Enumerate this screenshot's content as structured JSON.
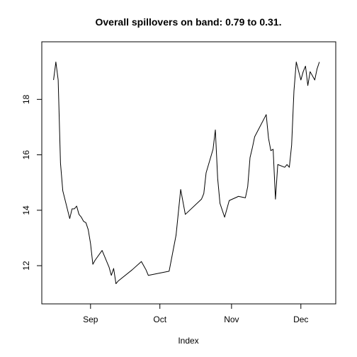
{
  "chart_data": {
    "type": "line",
    "title": "Overall spillovers on band: 0.79 to 0.31.",
    "xlabel": "Index",
    "ylabel": "",
    "x_axis": {
      "kind": "date",
      "range": [
        "2019-08-16",
        "2019-12-11"
      ],
      "ticks": [
        {
          "value": "2019-09-01",
          "label": "Sep"
        },
        {
          "value": "2019-10-01",
          "label": "Oct"
        },
        {
          "value": "2019-11-01",
          "label": "Nov"
        },
        {
          "value": "2019-12-01",
          "label": "Dec"
        }
      ]
    },
    "y_axis": {
      "range": [
        11.0,
        19.7
      ],
      "ticks": [
        {
          "value": 12,
          "label": "12"
        },
        {
          "value": 14,
          "label": "14"
        },
        {
          "value": 16,
          "label": "16"
        },
        {
          "value": 18,
          "label": "18"
        }
      ]
    },
    "grid": false,
    "line_color": "#000000",
    "series": [
      {
        "x": [
          "2019-08-16",
          "2019-08-17",
          "2019-08-18",
          "2019-08-19",
          "2019-08-20",
          "2019-08-23",
          "2019-08-24",
          "2019-08-25",
          "2019-08-26",
          "2019-08-27",
          "2019-08-28",
          "2019-08-29",
          "2019-08-30",
          "2019-08-31",
          "2019-09-01",
          "2019-09-02",
          "2019-09-03",
          "2019-09-06",
          "2019-09-09",
          "2019-09-10",
          "2019-09-11",
          "2019-09-12",
          "2019-09-13",
          "2019-09-19",
          "2019-09-23",
          "2019-09-24",
          "2019-09-25",
          "2019-09-26",
          "2019-10-05",
          "2019-10-08",
          "2019-10-10",
          "2019-10-12",
          "2019-10-19",
          "2019-10-20",
          "2019-10-21",
          "2019-10-24",
          "2019-10-25",
          "2019-10-26",
          "2019-10-27",
          "2019-10-29",
          "2019-10-31",
          "2019-11-04",
          "2019-11-07",
          "2019-11-08",
          "2019-11-09",
          "2019-11-10",
          "2019-11-11",
          "2019-11-16",
          "2019-11-17",
          "2019-11-18",
          "2019-11-19",
          "2019-11-20",
          "2019-11-21",
          "2019-11-24",
          "2019-11-25",
          "2019-11-26",
          "2019-11-27",
          "2019-11-28",
          "2019-11-29",
          "2019-12-01",
          "2019-12-02",
          "2019-12-03",
          "2019-12-04",
          "2019-12-05",
          "2019-12-07",
          "2019-12-08",
          "2019-12-09"
        ],
        "y": [
          18.7,
          19.35,
          18.7,
          15.7,
          14.7,
          13.7,
          14.05,
          14.05,
          14.15,
          13.85,
          13.75,
          13.6,
          13.55,
          13.3,
          12.8,
          12.05,
          12.2,
          12.55,
          11.95,
          11.65,
          11.9,
          11.35,
          11.45,
          11.85,
          12.15,
          12.0,
          11.85,
          11.65,
          11.8,
          13.1,
          14.75,
          13.85,
          14.4,
          14.6,
          15.35,
          16.2,
          16.9,
          15.15,
          14.25,
          13.75,
          14.35,
          14.5,
          14.45,
          14.85,
          15.9,
          16.25,
          16.65,
          17.45,
          16.6,
          16.15,
          16.2,
          14.4,
          15.65,
          15.55,
          15.65,
          15.55,
          16.35,
          18.3,
          19.35,
          18.7,
          19.0,
          19.2,
          18.5,
          19.0,
          18.7,
          19.1,
          19.35
        ]
      }
    ]
  }
}
